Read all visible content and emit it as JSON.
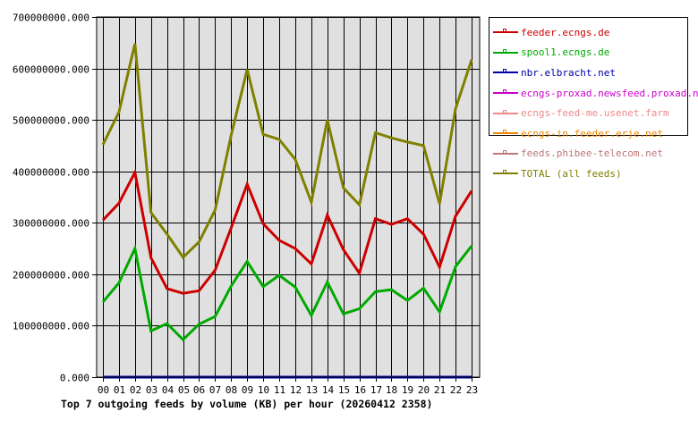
{
  "chart_data": {
    "type": "line",
    "title": "Top 7 outgoing feeds by volume (KB) per hour (20260412 2358)",
    "xlabel": "",
    "ylabel": "",
    "ylim": [
      0,
      700000000
    ],
    "yticks": [
      "0.000",
      "100000000.000",
      "200000000.000",
      "300000000.000",
      "400000000.000",
      "500000000.000",
      "600000000.000",
      "700000000.000"
    ],
    "grid": true,
    "legend_position": "right",
    "categories": [
      "00",
      "01",
      "02",
      "03",
      "04",
      "05",
      "06",
      "07",
      "08",
      "09",
      "10",
      "11",
      "12",
      "13",
      "14",
      "15",
      "16",
      "17",
      "18",
      "19",
      "20",
      "21",
      "22",
      "23"
    ],
    "series": [
      {
        "name": "feeder.ecngs.de",
        "color": "#cc0000",
        "values": [
          305000000,
          338000000,
          398000000,
          232000000,
          172000000,
          163000000,
          168000000,
          208000000,
          290000000,
          375000000,
          298000000,
          266000000,
          250000000,
          220000000,
          315000000,
          248000000,
          202000000,
          308000000,
          297000000,
          308000000,
          278000000,
          214000000,
          313000000,
          362000000
        ]
      },
      {
        "name": "spool1.ecngs.de",
        "color": "#00aa00",
        "values": [
          146000000,
          183000000,
          250000000,
          90000000,
          104000000,
          73000000,
          103000000,
          118000000,
          177000000,
          225000000,
          176000000,
          198000000,
          175000000,
          120000000,
          185000000,
          123000000,
          133000000,
          166000000,
          170000000,
          149000000,
          173000000,
          127000000,
          215000000,
          255000000
        ]
      },
      {
        "name": "nbr.elbracht.net",
        "color": "#0000aa",
        "values": [
          0,
          0,
          0,
          0,
          0,
          0,
          0,
          0,
          0,
          0,
          0,
          0,
          0,
          0,
          0,
          0,
          0,
          0,
          0,
          0,
          0,
          0,
          0,
          0
        ]
      },
      {
        "name": "ecngs-proxad.newsfeed.proxad.net",
        "color": "#cc00cc",
        "values": [
          0,
          0,
          0,
          0,
          0,
          0,
          0,
          0,
          0,
          0,
          0,
          0,
          0,
          0,
          0,
          0,
          0,
          0,
          0,
          0,
          0,
          0,
          0,
          0
        ]
      },
      {
        "name": "ecngs-feed-me.usenet.farm",
        "color": "#ee8888",
        "values": [
          0,
          0,
          0,
          0,
          0,
          0,
          0,
          0,
          0,
          0,
          0,
          0,
          0,
          0,
          0,
          0,
          0,
          0,
          0,
          0,
          0,
          0,
          0,
          0
        ]
      },
      {
        "name": "ecngs-in.feeder.erje.net",
        "color": "#ee8800",
        "values": [
          0,
          0,
          0,
          0,
          0,
          0,
          0,
          0,
          0,
          0,
          0,
          0,
          0,
          0,
          0,
          0,
          0,
          0,
          0,
          0,
          0,
          0,
          0,
          0
        ]
      },
      {
        "name": "feeds.phibee-telecom.net",
        "color": "#bb7777",
        "values": [
          0,
          0,
          0,
          0,
          0,
          0,
          0,
          0,
          0,
          0,
          0,
          0,
          0,
          0,
          0,
          0,
          0,
          0,
          0,
          0,
          0,
          0,
          0,
          0
        ]
      },
      {
        "name": "TOTAL (all feeds)",
        "color": "#808000",
        "values": [
          452000000,
          515000000,
          648000000,
          320000000,
          278000000,
          233000000,
          263000000,
          325000000,
          470000000,
          598000000,
          472000000,
          462000000,
          423000000,
          340000000,
          500000000,
          368000000,
          335000000,
          475000000,
          465000000,
          457000000,
          450000000,
          337000000,
          522000000,
          617000000
        ]
      }
    ]
  },
  "colors": {
    "plot_background": "#e0e0e0",
    "grid": "#000000"
  }
}
